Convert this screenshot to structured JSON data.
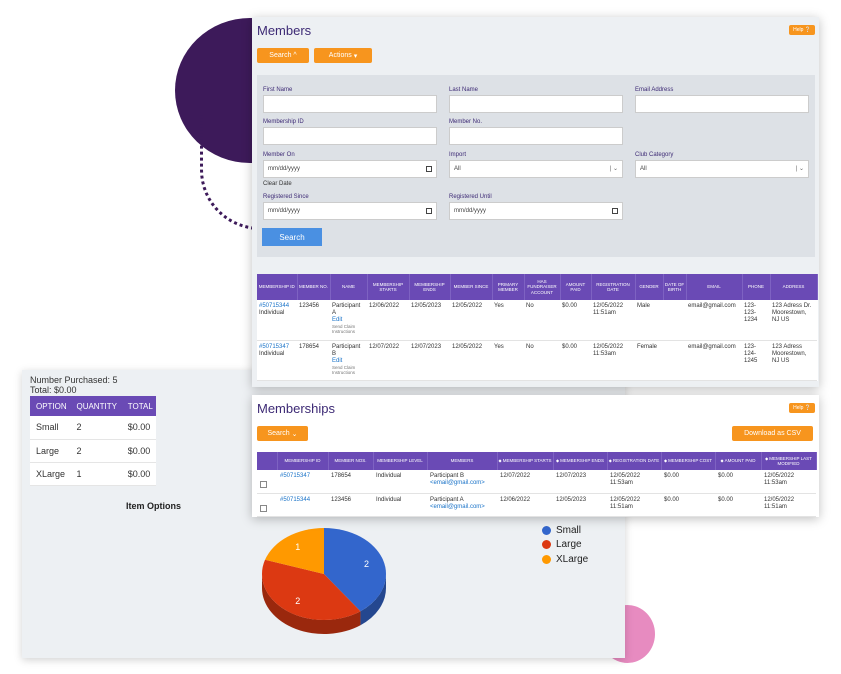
{
  "members": {
    "title": "Members",
    "help": "Help",
    "search_btn": "Search",
    "actions_btn": "Actions",
    "filters": {
      "first_name": "First Name",
      "last_name": "Last Name",
      "email": "Email Address",
      "membership_id": "Membership ID",
      "member_no": "Member No.",
      "member_on": "Member On",
      "member_on_value": "mm/dd/yyyy",
      "clear_date": "Clear Date",
      "import": "Import",
      "import_value": "All",
      "club_category": "Club Category",
      "club_category_value": "All",
      "registered_since": "Registered Since",
      "registered_since_value": "mm/dd/yyyy",
      "registered_until": "Registered Until",
      "registered_until_value": "mm/dd/yyyy",
      "search": "Search"
    },
    "columns": [
      "MEMBERSHIP ID",
      "MEMBER NO.",
      "NAME",
      "MEMBERSHIP STARTS",
      "MEMBERSHIP ENDS",
      "MEMBER SINCE",
      "PRIMARY MEMBER",
      "HAS FUNDRAISER ACCOUNT",
      "AMOUNT PAID",
      "REGISTRATION DATE",
      "GENDER",
      "DATE OF BIRTH",
      "EMAIL",
      "PHONE",
      "ADDRESS"
    ],
    "rows": [
      {
        "id": "#50715344",
        "type": "Individual",
        "no": "123456",
        "name": "Participant A",
        "edit": "Edit",
        "send": "Send Claim Instructions",
        "starts": "12/06/2022",
        "ends": "12/05/2023",
        "since": "12/05/2022",
        "primary": "Yes",
        "fund": "No",
        "paid": "$0.00",
        "reg": "12/05/2022 11:51am",
        "gender": "Male",
        "dob": "",
        "email": "email@gmail.com",
        "phone": "123-123-1234",
        "address": "123 Adress Dr. Moorestown, NJ US"
      },
      {
        "id": "#50715347",
        "type": "Individual",
        "no": "178654",
        "name": "Participant B",
        "edit": "Edit",
        "send": "Send Claim Instructions",
        "starts": "12/07/2022",
        "ends": "12/07/2023",
        "since": "12/05/2022",
        "primary": "Yes",
        "fund": "No",
        "paid": "$0.00",
        "reg": "12/05/2022 11:53am",
        "gender": "Female",
        "dob": "",
        "email": "email@gmail.com",
        "phone": "123-124-1245",
        "address": "123 Adress Moorestown, NJ US"
      }
    ]
  },
  "memberships": {
    "title": "Memberships",
    "help": "Help",
    "search_btn": "Search",
    "download_btn": "Download as CSV",
    "columns": [
      "MEMBERSHIP ID",
      "MEMBER NOS.",
      "MEMBERSHIP LEVEL",
      "MEMBERS",
      "MEMBERSHIP STARTS",
      "MEMBERSHIP ENDS",
      "REGISTRATION DATE",
      "MEMBERSHIP COST",
      "AMOUNT PAID",
      "MEMBERSHIP LAST MODIFIED"
    ],
    "rows": [
      {
        "id": "#50715347",
        "nos": "178654",
        "level": "Individual",
        "member": "Participant B",
        "email": "<email@gmail.com>",
        "starts": "12/07/2022",
        "ends": "12/07/2023",
        "reg": "12/05/2022 11:53am",
        "cost": "$0.00",
        "paid": "$0.00",
        "modified": "12/05/2022 11:53am"
      },
      {
        "id": "#50715344",
        "nos": "123456",
        "level": "Individual",
        "member": "Participant A",
        "email": "<email@gmail.com>",
        "starts": "12/06/2022",
        "ends": "12/05/2023",
        "reg": "12/05/2022 11:51am",
        "cost": "$0.00",
        "paid": "$0.00",
        "modified": "12/05/2022 11:51am"
      }
    ]
  },
  "item_options": {
    "number_purchased": "Number Purchased: 5",
    "total": "Total: $0.00",
    "columns": [
      "OPTION",
      "QUANTITY",
      "TOTAL"
    ],
    "rows": [
      {
        "option": "Small",
        "quantity": "2",
        "total": "$0.00"
      },
      {
        "option": "Large",
        "quantity": "2",
        "total": "$0.00"
      },
      {
        "option": "XLarge",
        "quantity": "1",
        "total": "$0.00"
      }
    ],
    "title": "Item Options"
  },
  "chart_data": {
    "type": "pie",
    "categories": [
      "Small",
      "Large",
      "XLarge"
    ],
    "values": [
      2,
      2,
      1
    ],
    "colors": [
      "#3366cc",
      "#dc3912",
      "#ff9900"
    ],
    "legend": "right"
  }
}
